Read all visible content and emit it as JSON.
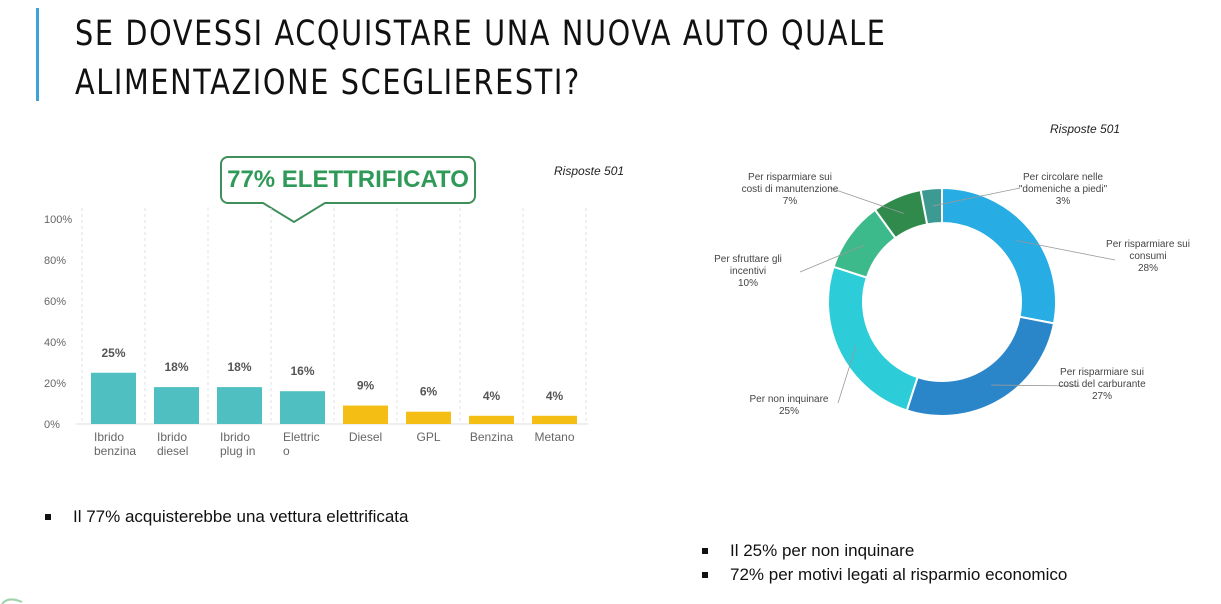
{
  "title": {
    "line1": "SE DOVESSI ACQUISTARE UNA NUOVA AUTO QUALE",
    "line2": "ALIMENTAZIONE SCEGLIERESTI?"
  },
  "callout_text": "77% ELETTRIFICATO",
  "bullets_left": [
    "Il 77% acquisterebbe una vettura elettrificata"
  ],
  "bullets_right": [
    "Il 25% per non inquinare",
    "72% per motivi legati al risparmio economico"
  ],
  "colors": {
    "accent": "#3fa3d6",
    "electrified_bar": "#4fbfc1",
    "other_bar": "#f5be14",
    "callout_border": "#3f8f5a",
    "callout_text": "#2f9a58"
  },
  "chart_data": [
    {
      "type": "bar",
      "responses_label": "Risposte 501",
      "categories": [
        [
          "Ibrido",
          "benzina"
        ],
        [
          "Ibrido",
          "diesel"
        ],
        [
          "Ibrido",
          "plug in"
        ],
        [
          "Elettric",
          "o"
        ],
        [
          "Diesel"
        ],
        [
          "GPL"
        ],
        [
          "Benzina"
        ],
        [
          "Metano"
        ]
      ],
      "values": [
        25,
        18,
        18,
        16,
        9,
        6,
        4,
        4
      ],
      "data_labels": [
        "25%",
        "18%",
        "18%",
        "16%",
        "9%",
        "6%",
        "4%",
        "4%"
      ],
      "bar_colors": [
        "#4fbfc1",
        "#4fbfc1",
        "#4fbfc1",
        "#4fbfc1",
        "#f5be14",
        "#f5be14",
        "#f5be14",
        "#f5be14"
      ],
      "ylim": [
        0,
        100
      ],
      "yticks": [
        0,
        20,
        40,
        60,
        80,
        100
      ],
      "ytick_labels": [
        "0%",
        "20%",
        "40%",
        "60%",
        "80%",
        "100%"
      ],
      "grid": "vertical-dashed",
      "xlabel": "",
      "ylabel": ""
    },
    {
      "type": "donut",
      "responses_label": "Risposte 501",
      "slices": [
        {
          "label": [
            "Per risparmiare sui",
            "consumi"
          ],
          "value": 28,
          "value_label": "28%",
          "color": "#27ace3"
        },
        {
          "label": [
            "Per risparmiare sui",
            "costi del carburante"
          ],
          "value": 27,
          "value_label": "27%",
          "color": "#2a86c8"
        },
        {
          "label": [
            "Per non inquinare"
          ],
          "value": 25,
          "value_label": "25%",
          "color": "#2ccdd8"
        },
        {
          "label": [
            "Per sfruttare gli",
            "incentivi"
          ],
          "value": 10,
          "value_label": "10%",
          "color": "#3cba8c"
        },
        {
          "label": [
            "Per risparmiare sui",
            "costi di manutenzione"
          ],
          "value": 7,
          "value_label": "7%",
          "color": "#2f8a4c"
        },
        {
          "label": [
            "Per circolare nelle",
            "\"domeniche a piedi\""
          ],
          "value": 3,
          "value_label": "3%",
          "color": "#3c9a92"
        }
      ]
    }
  ]
}
